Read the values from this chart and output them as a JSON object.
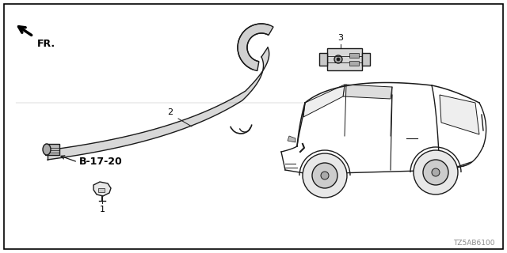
{
  "background_color": "#ffffff",
  "border_color": "#000000",
  "diagram_number": "TZ5AB6100",
  "ref_label": "B-17-20",
  "fr_label": "FR.",
  "text_color": "#000000",
  "line_color": "#1a1a1a",
  "gray_color": "#888888",
  "line_width": 1.0,
  "border_lw": 1.2,
  "label_fontsize": 8,
  "ref_fontsize": 9,
  "num_fontsize": 6.5
}
